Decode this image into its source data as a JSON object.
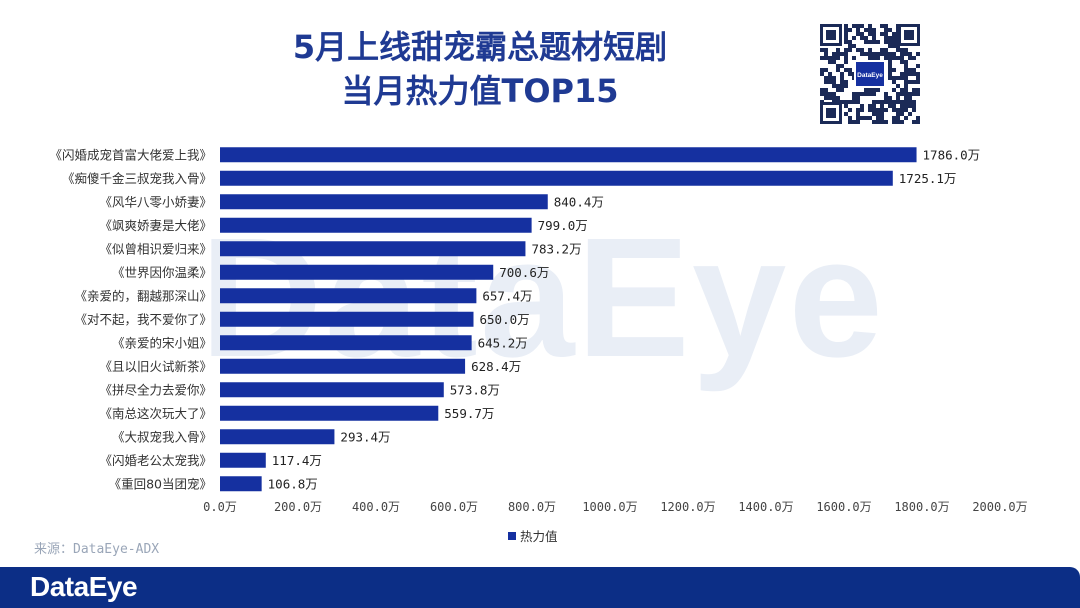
{
  "title_line1": "5月上线甜宠霸总题材短剧",
  "title_line2": "当月热力值TOP15",
  "watermark": "DataEye",
  "qr_logo_text": "DataEye",
  "source": "来源：DataEye-ADX",
  "footer_logo": "DataEye",
  "colors": {
    "bar": "#1530a0",
    "title": "#1f3a93",
    "footer": "#0c2e86"
  },
  "chart_data": {
    "type": "bar",
    "orientation": "horizontal",
    "categories": [
      "《闪婚成宠首富大佬爱上我》",
      "《痴傻千金三叔宠我入骨》",
      "《风华八零小娇妻》",
      "《飒爽娇妻是大佬》",
      "《似曾相识爱归来》",
      "《世界因你温柔》",
      "《亲爱的，翻越那深山》",
      "《对不起，我不爱你了》",
      "《亲爱的宋小姐》",
      "《且以旧火试新茶》",
      "《拼尽全力去爱你》",
      "《南总这次玩大了》",
      "《大叔宠我入骨》",
      "《闪婚老公太宠我》",
      "《重回80当团宠》"
    ],
    "values": [
      1786.0,
      1725.1,
      840.4,
      799.0,
      783.2,
      700.6,
      657.4,
      650.0,
      645.2,
      628.4,
      573.8,
      559.7,
      293.4,
      117.4,
      106.8
    ],
    "value_labels": [
      "1786.0万",
      "1725.1万",
      "840.4万",
      "799.0万",
      "783.2万",
      "700.6万",
      "657.4万",
      "650.0万",
      "645.2万",
      "628.4万",
      "573.8万",
      "559.7万",
      "293.4万",
      "117.4万",
      "106.8万"
    ],
    "xlim": [
      0,
      2000
    ],
    "xticks": [
      0,
      200,
      400,
      600,
      800,
      1000,
      1200,
      1400,
      1600,
      1800,
      2000
    ],
    "xtick_labels": [
      "0.0万",
      "200.0万",
      "400.0万",
      "600.0万",
      "800.0万",
      "1000.0万",
      "1200.0万",
      "1400.0万",
      "1600.0万",
      "1800.0万",
      "2000.0万"
    ],
    "legend": [
      "热力值"
    ],
    "legend_position": "bottom"
  }
}
